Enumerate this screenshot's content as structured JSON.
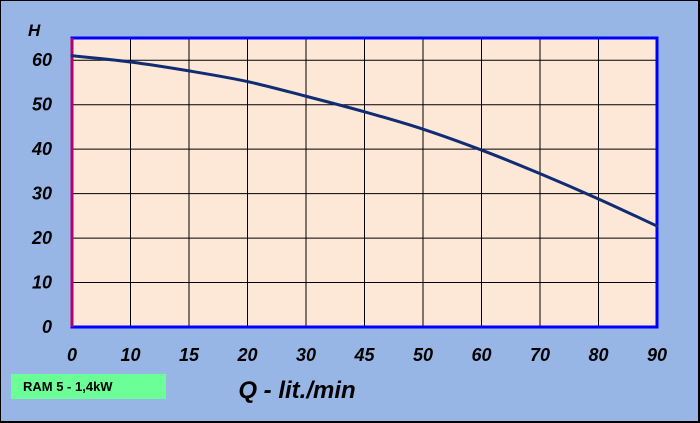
{
  "chart_data": {
    "type": "line",
    "title": "",
    "xlabel": "Q - lit./min",
    "ylabel": "H",
    "x_tick_labels": [
      "0",
      "10",
      "15",
      "20",
      "30",
      "45",
      "50",
      "60",
      "70",
      "80",
      "90"
    ],
    "y_tick_labels": [
      "0",
      "10",
      "20",
      "30",
      "40",
      "50",
      "60"
    ],
    "ylim": [
      0,
      65
    ],
    "grid": true,
    "series": [
      {
        "name": "",
        "x": [
          0,
          10,
          15,
          20,
          30,
          45,
          50,
          60,
          70,
          80,
          90
        ],
        "y": [
          61,
          59.6,
          57.6,
          55.2,
          51.9,
          48.4,
          44.5,
          39.8,
          34.5,
          28.8,
          22.7
        ]
      }
    ]
  },
  "legend": {
    "model_label": "RAM 5 - 1,4kW"
  },
  "colors": {
    "background": "#97b6e5",
    "plot_area": "#fde7d6",
    "plot_border": "#0000ff",
    "y_axis": "#b20071",
    "curve": "#102c74",
    "badge": "#6cff97"
  }
}
